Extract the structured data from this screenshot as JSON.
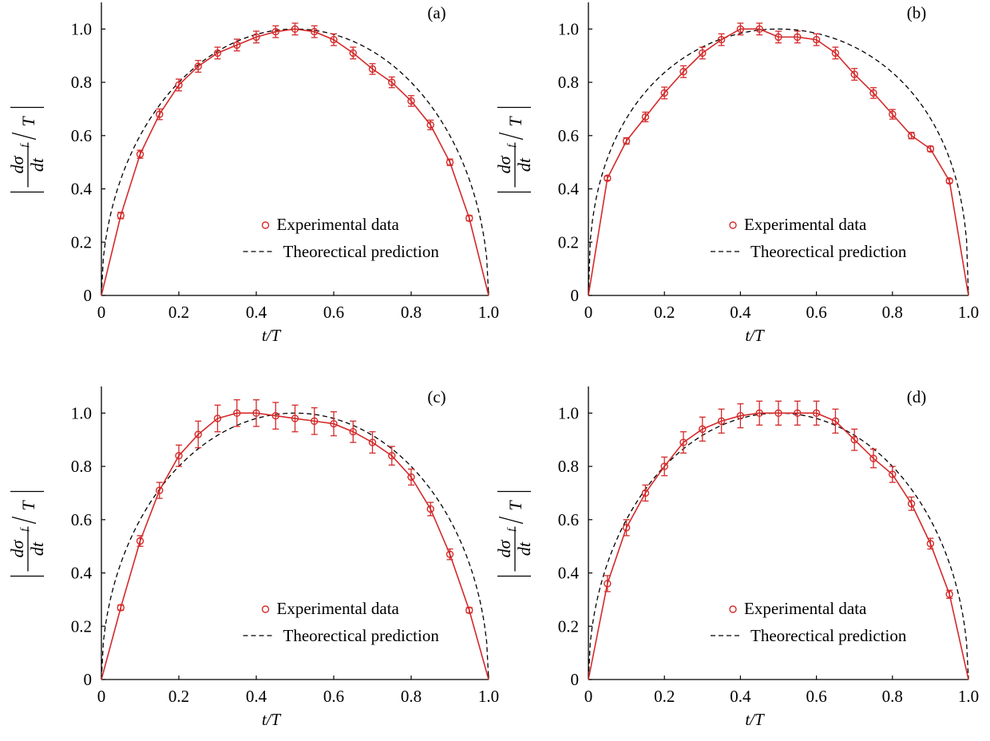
{
  "figure": {
    "panels": [
      {
        "label": "(a)",
        "xlabel": "t/T",
        "ylabel": "|dσf/dt / T|",
        "legend": {
          "experimental": "Experimental data",
          "theory": "Theorectical prediction"
        }
      },
      {
        "label": "(b)",
        "xlabel": "t/T",
        "ylabel": "|dσf/dt / T|",
        "legend": {
          "experimental": "Experimental data",
          "theory": "Theorectical prediction"
        }
      },
      {
        "label": "(c)",
        "xlabel": "t/T",
        "ylabel": "|dσf/dt / T|",
        "legend": {
          "experimental": "Experimental data",
          "theory": "Theorectical prediction"
        }
      },
      {
        "label": "(d)",
        "xlabel": "t/T",
        "ylabel": "|dσf/dt / T|",
        "legend": {
          "experimental": "Experimental data",
          "theory": "Theorectical prediction"
        }
      }
    ]
  },
  "chart_data": [
    {
      "type": "line",
      "panel": "(a)",
      "xlabel": "t/T",
      "ylabel": "|dσf/dt / T|",
      "xlim": [
        0,
        1.0
      ],
      "ylim": [
        0,
        1.1
      ],
      "xticks": [
        "0",
        "0.2",
        "0.4",
        "0.6",
        "0.8",
        "1.0"
      ],
      "yticks": [
        "0",
        "0.2",
        "0.4",
        "0.6",
        "0.8",
        "1.0"
      ],
      "legend_position": "lower-center",
      "theory_exponent": 0.5,
      "theory_center": 0.5,
      "series": [
        {
          "name": "Experimental data",
          "color": "#d42a2a",
          "x": [
            0,
            0.05,
            0.1,
            0.15,
            0.2,
            0.25,
            0.3,
            0.35,
            0.4,
            0.45,
            0.5,
            0.55,
            0.6,
            0.65,
            0.7,
            0.75,
            0.8,
            0.85,
            0.9,
            0.95,
            1.0
          ],
          "y": [
            0,
            0.3,
            0.53,
            0.68,
            0.79,
            0.86,
            0.91,
            0.94,
            0.97,
            0.99,
            1.0,
            0.99,
            0.96,
            0.91,
            0.85,
            0.8,
            0.73,
            0.64,
            0.5,
            0.29,
            0
          ],
          "err": [
            0,
            0.012,
            0.015,
            0.02,
            0.022,
            0.022,
            0.022,
            0.022,
            0.022,
            0.022,
            0.022,
            0.022,
            0.022,
            0.022,
            0.02,
            0.02,
            0.02,
            0.018,
            0.012,
            0.01,
            0
          ]
        },
        {
          "name": "Theorectical prediction",
          "color": "#000000",
          "dashed": true
        }
      ]
    },
    {
      "type": "line",
      "panel": "(b)",
      "xlabel": "t/T",
      "ylabel": "|dσf/dt / T|",
      "xlim": [
        0,
        1.0
      ],
      "ylim": [
        0,
        1.1
      ],
      "xticks": [
        "0",
        "0.2",
        "0.4",
        "0.6",
        "0.8",
        "1.0"
      ],
      "yticks": [
        "0",
        "0.2",
        "0.4",
        "0.6",
        "0.8",
        "1.0"
      ],
      "legend_position": "lower-center",
      "theory_exponent": 0.4,
      "theory_center": 0.5,
      "series": [
        {
          "name": "Experimental data",
          "color": "#d42a2a",
          "x": [
            0,
            0.05,
            0.1,
            0.15,
            0.2,
            0.25,
            0.3,
            0.35,
            0.4,
            0.45,
            0.5,
            0.55,
            0.6,
            0.65,
            0.7,
            0.75,
            0.8,
            0.85,
            0.9,
            0.95,
            1.0
          ],
          "y": [
            0,
            0.44,
            0.58,
            0.67,
            0.76,
            0.84,
            0.91,
            0.96,
            1.0,
            1.0,
            0.97,
            0.97,
            0.96,
            0.91,
            0.83,
            0.76,
            0.68,
            0.6,
            0.55,
            0.43,
            0
          ],
          "err": [
            0,
            0.008,
            0.012,
            0.018,
            0.022,
            0.022,
            0.022,
            0.022,
            0.022,
            0.022,
            0.022,
            0.022,
            0.022,
            0.022,
            0.022,
            0.02,
            0.018,
            0.012,
            0.01,
            0.008,
            0
          ]
        },
        {
          "name": "Theorectical prediction",
          "color": "#000000",
          "dashed": true
        }
      ]
    },
    {
      "type": "line",
      "panel": "(c)",
      "xlabel": "t/T",
      "ylabel": "|dσf/dt / T|",
      "xlim": [
        0,
        1.0
      ],
      "ylim": [
        0,
        1.1
      ],
      "xticks": [
        "0",
        "0.2",
        "0.4",
        "0.6",
        "0.8",
        "1.0"
      ],
      "yticks": [
        "0",
        "0.2",
        "0.4",
        "0.6",
        "0.8",
        "1.0"
      ],
      "legend_position": "lower-center",
      "theory_exponent": 0.5,
      "theory_center": 0.5,
      "series": [
        {
          "name": "Experimental data",
          "color": "#d42a2a",
          "x": [
            0,
            0.05,
            0.1,
            0.15,
            0.2,
            0.25,
            0.3,
            0.35,
            0.4,
            0.45,
            0.5,
            0.55,
            0.6,
            0.65,
            0.7,
            0.75,
            0.8,
            0.85,
            0.9,
            0.95,
            1.0
          ],
          "y": [
            0,
            0.27,
            0.52,
            0.71,
            0.84,
            0.92,
            0.98,
            1.0,
            1.0,
            0.99,
            0.98,
            0.97,
            0.96,
            0.93,
            0.89,
            0.84,
            0.76,
            0.64,
            0.47,
            0.26,
            0
          ],
          "err": [
            0,
            0.01,
            0.02,
            0.03,
            0.04,
            0.05,
            0.05,
            0.05,
            0.05,
            0.05,
            0.05,
            0.05,
            0.045,
            0.04,
            0.04,
            0.035,
            0.03,
            0.025,
            0.02,
            0.01,
            0
          ]
        },
        {
          "name": "Theorectical prediction",
          "color": "#000000",
          "dashed": true
        }
      ]
    },
    {
      "type": "line",
      "panel": "(d)",
      "xlabel": "t/T",
      "ylabel": "|dσf/dt / T|",
      "xlim": [
        0,
        1.0
      ],
      "ylim": [
        0,
        1.1
      ],
      "xticks": [
        "0",
        "0.2",
        "0.4",
        "0.6",
        "0.8",
        "1.0"
      ],
      "yticks": [
        "0",
        "0.2",
        "0.4",
        "0.6",
        "0.8",
        "1.0"
      ],
      "legend_position": "lower-center",
      "theory_exponent": 0.5,
      "theory_center": 0.5,
      "series": [
        {
          "name": "Experimental data",
          "color": "#d42a2a",
          "x": [
            0,
            0.05,
            0.1,
            0.15,
            0.2,
            0.25,
            0.3,
            0.35,
            0.4,
            0.45,
            0.5,
            0.55,
            0.6,
            0.65,
            0.7,
            0.75,
            0.8,
            0.85,
            0.9,
            0.95,
            1.0
          ],
          "y": [
            0,
            0.36,
            0.57,
            0.7,
            0.8,
            0.89,
            0.94,
            0.97,
            0.99,
            1.0,
            1.0,
            1.0,
            1.0,
            0.97,
            0.9,
            0.83,
            0.77,
            0.66,
            0.51,
            0.32,
            0
          ],
          "err": [
            0,
            0.03,
            0.03,
            0.03,
            0.035,
            0.04,
            0.045,
            0.045,
            0.045,
            0.045,
            0.045,
            0.045,
            0.045,
            0.045,
            0.04,
            0.035,
            0.03,
            0.025,
            0.02,
            0.015,
            0
          ]
        },
        {
          "name": "Theorectical prediction",
          "color": "#000000",
          "dashed": true
        }
      ]
    }
  ]
}
